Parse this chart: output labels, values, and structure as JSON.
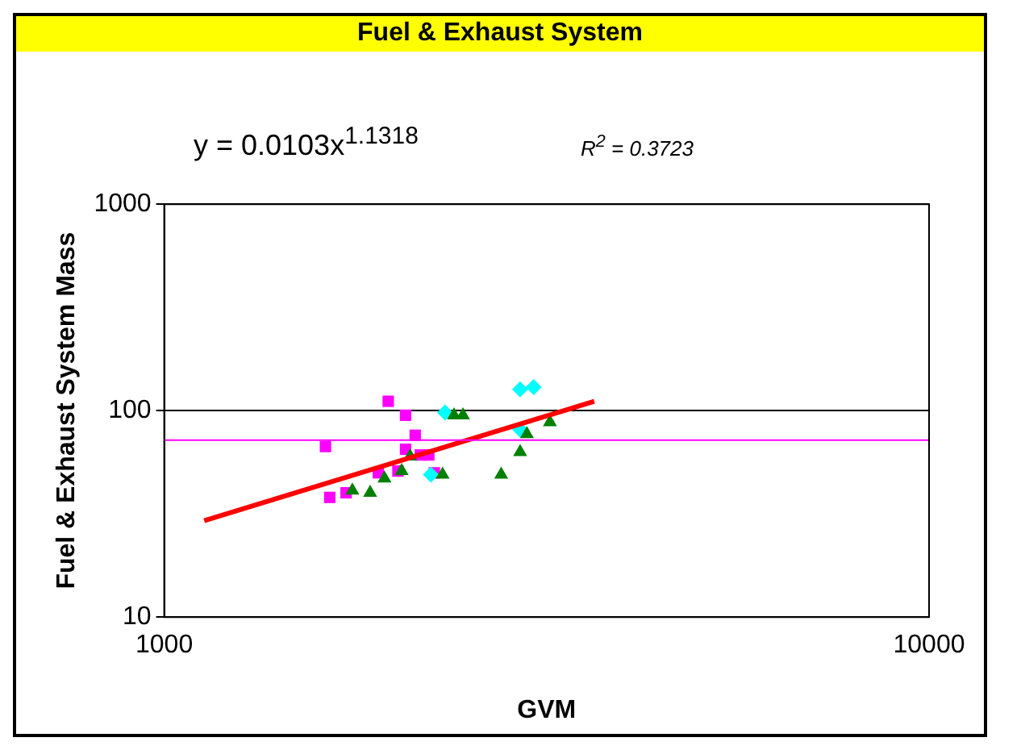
{
  "chart_data": {
    "type": "scatter",
    "title": "Fuel & Exhaust System",
    "xlabel": "GVM",
    "ylabel": "Fuel & Exhaust System Mass",
    "annotations": [
      "y = 0.0103x$^{1.1318}$",
      "R$^{2}$ = 0.3723"
    ],
    "log": "xy",
    "xlim": [
      1000,
      10000
    ],
    "xticks": [
      1000,
      10000
    ],
    "ylim": [
      10,
      1000
    ],
    "yticks": [
      10,
      100,
      1000
    ],
    "grid": "y",
    "legend": false,
    "ref_lines": [
      {
        "axis": "y",
        "value": 72,
        "color": "#ff00ff"
      }
    ],
    "series": [
      {
        "type": "scatter",
        "marker": "square",
        "color": "#ff00ff",
        "x": [
          1625,
          1963,
          2068,
          2129,
          2068,
          2162,
          2218,
          1905,
          2021,
          2255,
          1646,
          1729
        ],
        "values": [
          67,
          111,
          95,
          76,
          65,
          61,
          61,
          50,
          51,
          50,
          38,
          40
        ]
      },
      {
        "type": "scatter",
        "marker": "diamond",
        "color": "#00ffff",
        "x": [
          2329,
          2920,
          3041,
          2920,
          2232
        ],
        "values": [
          98,
          127,
          130,
          81,
          49
        ]
      },
      {
        "type": "scatter",
        "marker": "triangle",
        "color": "#008000",
        "x": [
          1762,
          1859,
          1941,
          2044,
          2097,
          2312,
          2393,
          2458,
          2758,
          2920,
          2980,
          3194
        ],
        "values": [
          41,
          40,
          47,
          51,
          60,
          49,
          95,
          95,
          49,
          63,
          77,
          88
        ]
      },
      {
        "type": "line",
        "marker": "none",
        "color": "#ff0000",
        "x": [
          1128,
          3650
        ],
        "values": [
          29.3,
          110.9
        ]
      }
    ]
  }
}
